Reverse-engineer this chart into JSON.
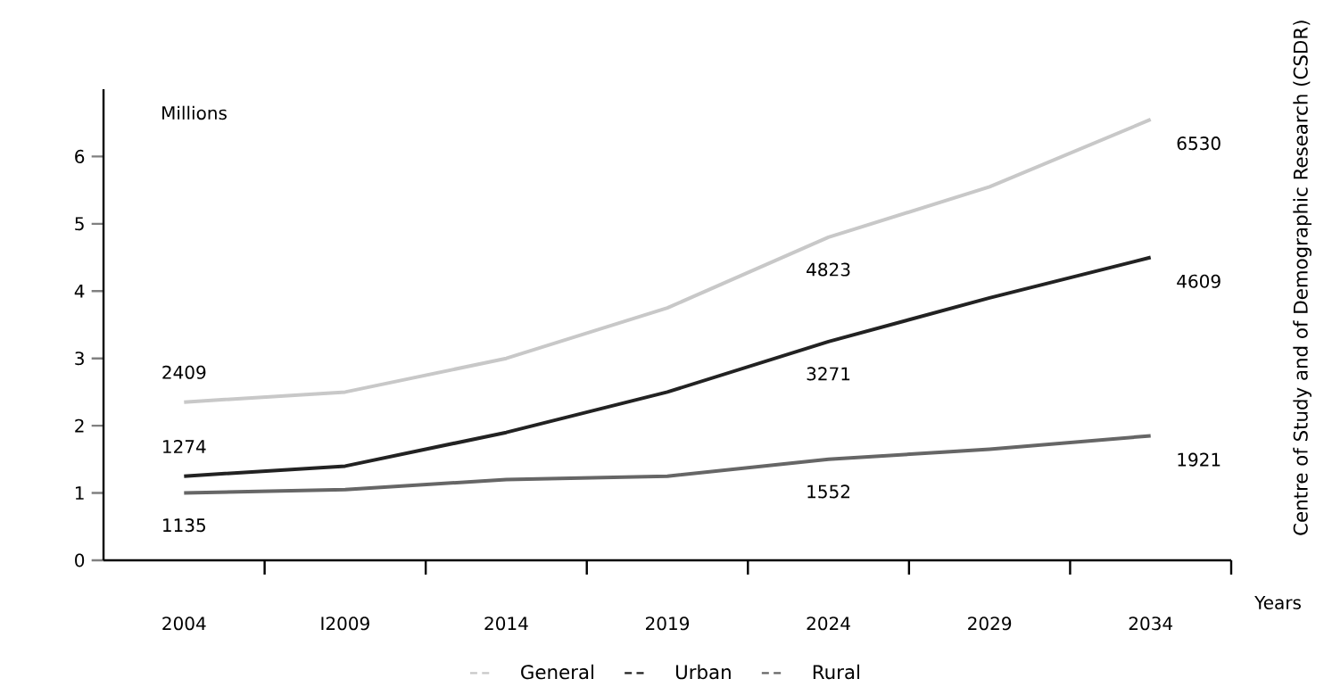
{
  "chart_data": {
    "type": "line",
    "categories": [
      "2004",
      "I2009",
      "2014",
      "2019",
      "2024",
      "2029",
      "2034"
    ],
    "series": [
      {
        "name": "General",
        "color": "#c8c8c8",
        "values": [
          2.35,
          2.5,
          3.0,
          3.75,
          4.8,
          5.55,
          6.55
        ]
      },
      {
        "name": "Urban",
        "color": "#222222",
        "values": [
          1.25,
          1.4,
          1.9,
          2.5,
          3.25,
          3.9,
          4.5
        ]
      },
      {
        "name": "Rural",
        "color": "#666666",
        "values": [
          1.0,
          1.05,
          1.2,
          1.25,
          1.5,
          1.65,
          1.85
        ]
      }
    ],
    "ylim": [
      0,
      7
    ],
    "yticks": [
      0,
      1,
      2,
      3,
      4,
      5,
      6
    ],
    "ylabel": "Millions",
    "xlabel": "Years",
    "annotations": [
      "Centre of Study and of Demographic Research (CSDR)",
      {
        "text": "2409",
        "x": "2004",
        "y": 2.35
      },
      {
        "text": "1274",
        "x": "2004",
        "y": 1.25
      },
      {
        "text": "1135",
        "x": "2004",
        "y": 1.0
      },
      {
        "text": "4823",
        "x": "2024",
        "y": 4.8
      },
      {
        "text": "3271",
        "x": "2024",
        "y": 3.25
      },
      {
        "text": "1552",
        "x": "2024",
        "y": 1.5
      },
      {
        "text": "6530",
        "x": "2034",
        "y": 6.55
      },
      {
        "text": "4609",
        "x": "2034",
        "y": 4.5
      },
      {
        "text": "1921",
        "x": "2034",
        "y": 1.85
      }
    ],
    "legend": "bottom"
  }
}
